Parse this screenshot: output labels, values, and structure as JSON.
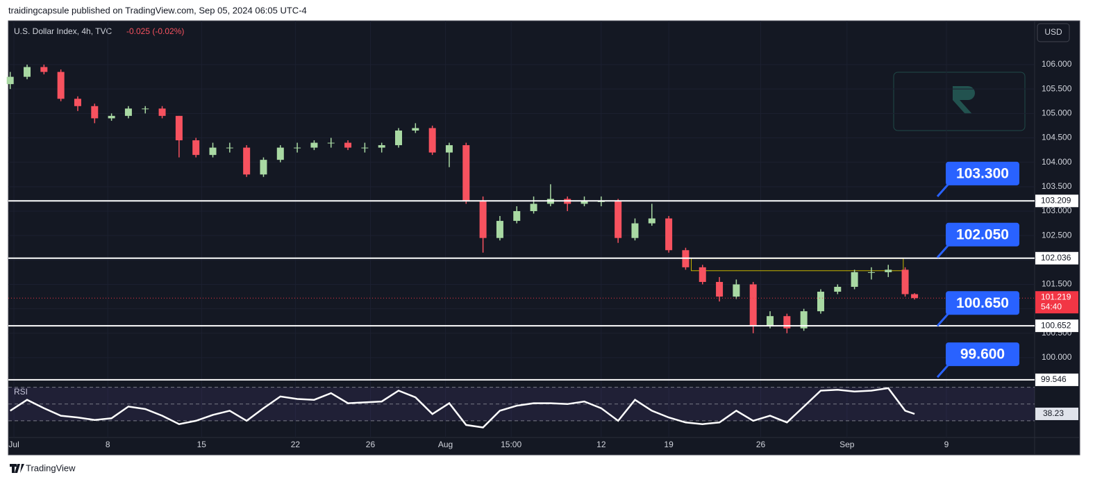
{
  "header": {
    "publisher": "traidingcapsule published on TradingView.com, Sep 05, 2024 06:05 UTC-4",
    "brand": "TradingView"
  },
  "chart_data": {
    "type": "candlestick",
    "symbol": "U.S. Dollar Index, 4h, TVC",
    "change": "-0.025 (-0.02%)",
    "currency": "USD",
    "x": [
      -0.2,
      0.7,
      1.6,
      2.5,
      3.4,
      4.3,
      5.2,
      6.1,
      7,
      7.9,
      8.8,
      9.7,
      10.6,
      11.5,
      12.4,
      13.3,
      14.2,
      15.1,
      16,
      16.9,
      17.8,
      18.7,
      19.6,
      20.5,
      21.4,
      22.3,
      23.2,
      24.1,
      25,
      25.9,
      26.8,
      27.7,
      28.6,
      29.5,
      30.4,
      31.3,
      32.2,
      33.1,
      34,
      34.9,
      35.8,
      36.7,
      37.6,
      38.5,
      39.4,
      40.3,
      41.2,
      42.1,
      43,
      43.9,
      44.8,
      45.7,
      46.6,
      47.5,
      48
    ],
    "open": [
      105.6,
      105.75,
      105.95,
      105.85,
      105.3,
      105.15,
      104.9,
      104.95,
      105.1,
      105.1,
      104.95,
      104.45,
      104.15,
      104.3,
      104.3,
      103.75,
      104.05,
      104.3,
      104.3,
      104.4,
      104.4,
      104.3,
      104.3,
      104.35,
      104.65,
      104.7,
      104.2,
      104.35,
      103.2,
      102.45,
      102.8,
      103,
      103.15,
      103.25,
      103.15,
      103.2,
      103.2,
      102.45,
      102.75,
      102.85,
      102.2,
      101.85,
      101.55,
      101.25,
      101.5,
      100.65,
      100.85,
      100.6,
      100.95,
      101.35,
      101.45,
      101.75,
      101.75,
      101.8,
      101.3
    ],
    "high": [
      105.85,
      106.0,
      106.0,
      105.9,
      105.35,
      105.2,
      105.0,
      105.15,
      105.15,
      105.15,
      104.95,
      104.5,
      104.4,
      104.4,
      104.35,
      104.1,
      104.35,
      104.4,
      104.45,
      104.5,
      104.45,
      104.4,
      104.4,
      104.7,
      104.8,
      104.75,
      104.4,
      104.4,
      103.3,
      102.9,
      103.1,
      103.3,
      103.55,
      103.3,
      103.3,
      103.3,
      103.25,
      102.85,
      103.15,
      102.9,
      102.25,
      101.9,
      101.65,
      101.6,
      101.55,
      100.95,
      100.9,
      101.0,
      101.4,
      101.5,
      101.8,
      101.85,
      101.9,
      101.85,
      101.32
    ],
    "low": [
      105.5,
      105.7,
      105.8,
      105.25,
      105.05,
      104.8,
      104.85,
      104.9,
      105.0,
      104.9,
      104.1,
      104.1,
      104.1,
      104.2,
      103.7,
      103.7,
      104.0,
      104.2,
      104.25,
      104.3,
      104.25,
      104.2,
      104.2,
      104.3,
      104.6,
      104.15,
      103.9,
      103.15,
      102.15,
      102.4,
      102.75,
      102.95,
      103.1,
      103.0,
      103.1,
      103.1,
      102.35,
      102.4,
      102.7,
      102.15,
      101.8,
      101.5,
      101.15,
      101.2,
      100.5,
      100.6,
      100.5,
      100.55,
      100.9,
      101.3,
      101.4,
      101.6,
      101.65,
      101.25,
      101.19
    ],
    "close": [
      105.75,
      105.95,
      105.85,
      105.3,
      105.15,
      104.9,
      104.95,
      105.1,
      105.1,
      104.95,
      104.45,
      104.15,
      104.3,
      104.3,
      103.75,
      104.05,
      104.3,
      104.3,
      104.4,
      104.4,
      104.3,
      104.3,
      104.35,
      104.65,
      104.7,
      104.2,
      104.35,
      103.2,
      102.45,
      102.8,
      103,
      103.15,
      103.25,
      103.15,
      103.2,
      103.2,
      102.45,
      102.75,
      102.85,
      102.2,
      101.85,
      101.55,
      101.25,
      101.5,
      100.65,
      100.85,
      100.6,
      100.95,
      101.35,
      101.45,
      101.75,
      101.75,
      101.8,
      101.3,
      101.219
    ],
    "up_color": "#a9d9a3",
    "down_color": "#f7525f",
    "xlim": [
      -0.3,
      54.4
    ],
    "xticks": [
      {
        "value": 0,
        "label": "Jul"
      },
      {
        "value": 5,
        "label": "8"
      },
      {
        "value": 10,
        "label": "15"
      },
      {
        "value": 15,
        "label": "22"
      },
      {
        "value": 19,
        "label": "26"
      },
      {
        "value": 23,
        "label": "Aug"
      },
      {
        "value": 26.5,
        "label": "15:00"
      },
      {
        "value": 31.3,
        "label": "12"
      },
      {
        "value": 34.9,
        "label": "19"
      },
      {
        "value": 39.8,
        "label": "26"
      },
      {
        "value": 44.4,
        "label": "Sep"
      },
      {
        "value": 49.7,
        "label": "9"
      }
    ],
    "ylim": [
      99.573,
      106.896
    ],
    "yticks": [
      {
        "value": 100,
        "label": "100.000"
      },
      {
        "value": 100.5,
        "label": "100.500"
      },
      {
        "value": 101,
        "label": "101.000"
      },
      {
        "value": 101.5,
        "label": "101.500"
      },
      {
        "value": 102,
        "label": "102.000"
      },
      {
        "value": 102.5,
        "label": "102.500"
      },
      {
        "value": 103,
        "label": "103.000"
      },
      {
        "value": 103.5,
        "label": "103.500"
      },
      {
        "value": 104,
        "label": "104.000"
      },
      {
        "value": 104.5,
        "label": "104.500"
      },
      {
        "value": 105,
        "label": "105.000"
      },
      {
        "value": 105.5,
        "label": "105.500"
      },
      {
        "value": 106,
        "label": "106.000"
      }
    ],
    "grid": true,
    "levels": [
      103.209,
      102.036,
      100.652,
      99.546
    ],
    "level_color": "#ffffff",
    "callouts": [
      {
        "value": 103.3,
        "label": "103.300"
      },
      {
        "value": 102.05,
        "label": "102.050"
      },
      {
        "value": 100.65,
        "label": "100.650"
      },
      {
        "value": 99.6,
        "label": "99.600"
      }
    ],
    "callout_color": "#2962ff",
    "last_price": 101.219,
    "countdown": "54:40",
    "last_color": "#f23645",
    "zone": {
      "x": [
        36.1,
        47.4
      ],
      "top": 102.03,
      "bottom": 101.78,
      "color": "#c9b700"
    },
    "rsi": {
      "name": "RSI",
      "values": [
        42,
        55,
        45,
        36,
        34,
        31,
        33,
        47,
        44,
        36,
        26,
        30,
        37,
        42,
        30,
        45,
        59,
        56,
        55,
        63,
        51,
        52,
        53,
        66,
        58,
        38,
        51,
        25,
        22,
        42,
        48,
        51,
        51,
        50,
        53,
        45,
        30,
        55,
        42,
        34,
        28,
        26,
        28,
        42,
        30,
        36,
        28,
        47,
        66,
        67,
        65,
        66,
        69,
        42,
        38.23
      ],
      "ylim": [
        10,
        78
      ],
      "bands": [
        70,
        50,
        30
      ],
      "last": 38.23,
      "color": "#ffffff"
    }
  }
}
